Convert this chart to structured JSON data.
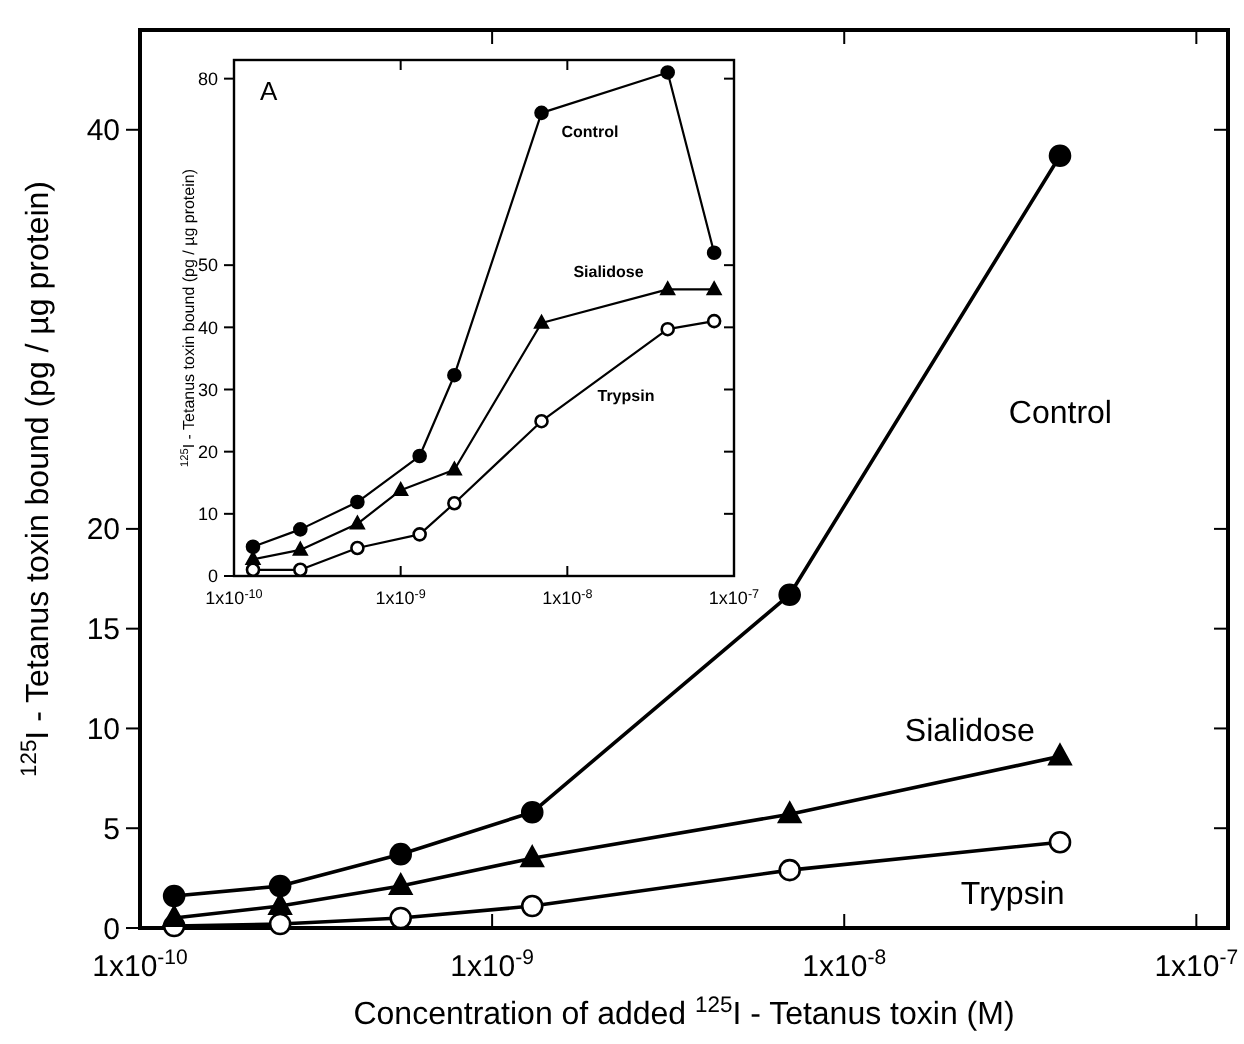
{
  "chart_data": [
    {
      "type": "line",
      "xlabel": "Concentration of added $^{125}$I - Tetanus toxin (M)",
      "ylabel": "$^{125}$I - Tetanus toxin bound (pg / µg protein)",
      "log": "x",
      "x": [
        1.25e-10,
        2.5e-10,
        5.5e-10,
        1.3e-09,
        7e-09,
        4.1e-08
      ],
      "series": [
        {
          "name": "Control",
          "color": "#000000",
          "marker": "circle",
          "values": [
            1.6,
            2.1,
            3.7,
            5.8,
            16.7,
            38.7
          ]
        },
        {
          "name": "Sialidose",
          "color": "#000000",
          "marker": "triangle",
          "values": [
            0.5,
            1.1,
            2.1,
            3.5,
            5.7,
            8.6
          ]
        },
        {
          "name": "Trypsin",
          "color": "#ffffff",
          "marker": "circle",
          "values": [
            0.1,
            0.2,
            0.5,
            1.1,
            2.9,
            4.3
          ]
        }
      ],
      "xlim": [
        1e-10,
        1.23e-07
      ],
      "xticks": [
        {
          "value": 1e-10,
          "label": "1x10$^{-10}$"
        },
        {
          "value": 1e-09,
          "label": "1x10$^{-9}$"
        },
        {
          "value": 1e-08,
          "label": "1x10$^{-8}$"
        },
        {
          "value": 1e-07,
          "label": "1x10$^{-7}$"
        }
      ],
      "ylim": [
        0,
        45
      ],
      "yticks": [
        0,
        5,
        10,
        15,
        20,
        40
      ],
      "grid": false
    },
    {
      "type": "line",
      "ylabel": "$^{125}$I - Tetanus toxin bound (pg / µg protein)",
      "log": "x",
      "annotations": [
        "A"
      ],
      "series": [
        {
          "name": "Control",
          "color": "#000000",
          "marker": "circle",
          "x": [
            1.3e-10,
            2.5e-10,
            5.5e-10,
            1.3e-09,
            2.1e-09,
            7e-09,
            4e-08,
            7.6e-08
          ],
          "values": [
            4.7,
            7.5,
            11.9,
            19.3,
            32.3,
            74.5,
            81,
            52
          ]
        },
        {
          "name": "Sialidose",
          "color": "#000000",
          "marker": "triangle",
          "x": [
            1.3e-10,
            2.5e-10,
            5.5e-10,
            1e-09,
            2.1e-09,
            7e-09,
            4e-08,
            7.6e-08
          ],
          "values": [
            2.7,
            4.2,
            8.4,
            13.8,
            17.1,
            40.7,
            46.1,
            46.1
          ]
        },
        {
          "name": "Trypsin",
          "color": "#ffffff",
          "marker": "circle",
          "x": [
            1.3e-10,
            2.5e-10,
            5.5e-10,
            1.3e-09,
            2.1e-09,
            7e-09,
            4e-08,
            7.6e-08
          ],
          "values": [
            1,
            1,
            4.5,
            6.7,
            11.7,
            24.9,
            39.7,
            41
          ]
        }
      ],
      "xlim": [
        1e-10,
        1e-07
      ],
      "xticks": [
        {
          "value": 1e-10,
          "label": "1x10$^{-10}$"
        },
        {
          "value": 1e-09,
          "label": "1x10$^{-9}$"
        },
        {
          "value": 1e-08,
          "label": "1x10$^{-8}$"
        },
        {
          "value": 1e-07,
          "label": "1x10$^{-7}$"
        }
      ],
      "ylim": [
        0,
        83
      ],
      "yticks": [
        0,
        10,
        20,
        30,
        40,
        50,
        80
      ],
      "grid": false
    }
  ]
}
